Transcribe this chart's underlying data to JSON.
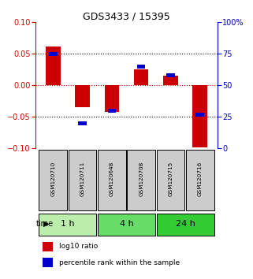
{
  "title": "GDS3433 / 15395",
  "samples": [
    "GSM120710",
    "GSM120711",
    "GSM120648",
    "GSM120708",
    "GSM120715",
    "GSM120716"
  ],
  "log10_ratio": [
    0.062,
    -0.035,
    -0.042,
    0.025,
    0.015,
    -0.098
  ],
  "percentile_rank": [
    75,
    20,
    30,
    65,
    58,
    27
  ],
  "red_color": "#cc0000",
  "blue_color": "#0000cc",
  "ylim_left": [
    -0.1,
    0.1
  ],
  "ylim_right": [
    0,
    100
  ],
  "yticks_left": [
    -0.1,
    -0.05,
    0,
    0.05,
    0.1
  ],
  "yticks_right": [
    0,
    25,
    50,
    75,
    100
  ],
  "groups": [
    {
      "label": "1 h",
      "span": [
        0,
        2
      ],
      "color": "#bbeeaa"
    },
    {
      "label": "4 h",
      "span": [
        2,
        4
      ],
      "color": "#66dd66"
    },
    {
      "label": "24 h",
      "span": [
        4,
        6
      ],
      "color": "#33cc33"
    }
  ],
  "bar_width": 0.5,
  "blue_bar_width": 0.28,
  "blue_bar_height": 0.006,
  "legend_red": "log10 ratio",
  "legend_blue": "percentile rank within the sample",
  "time_label": "time",
  "background_plot": "#ffffff",
  "sample_box_color": "#cccccc",
  "dotted_line_color": "#000000",
  "zero_line_color": "#cc0000"
}
